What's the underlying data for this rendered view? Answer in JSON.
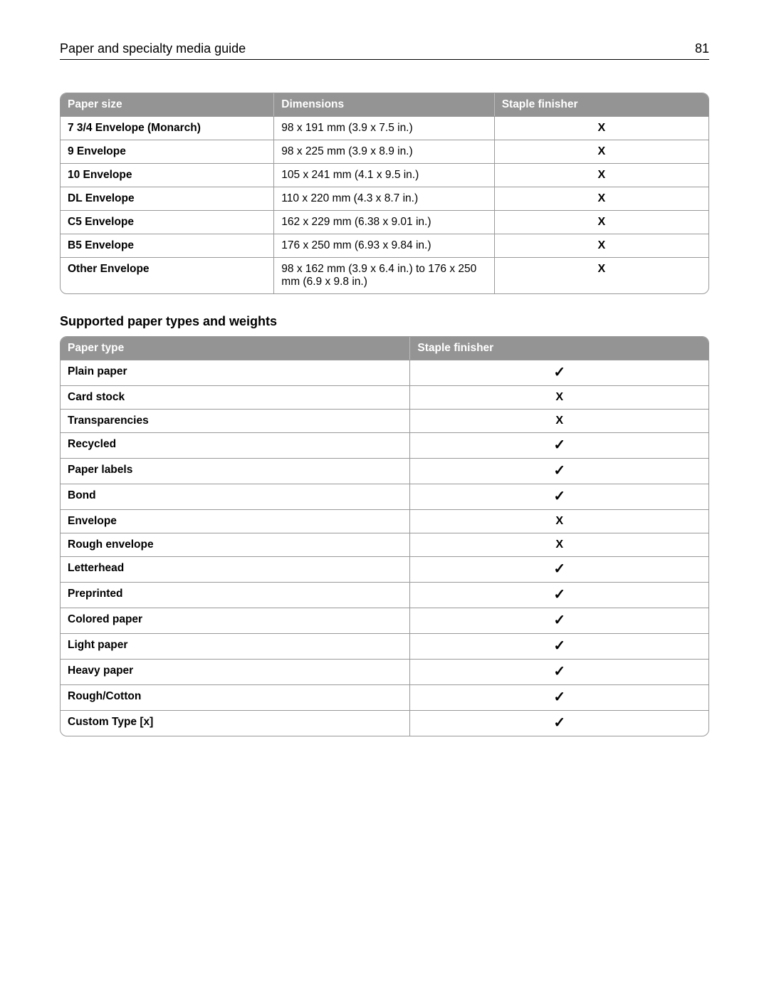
{
  "header": {
    "title": "Paper and specialty media guide",
    "page_number": "81"
  },
  "glyphs": {
    "check": "✓",
    "xmark": "X"
  },
  "colors": {
    "header_bg": "#949494",
    "header_text": "#ffffff",
    "border": "#999999"
  },
  "table1": {
    "columns": [
      "Paper size",
      "Dimensions",
      "Staple finisher"
    ],
    "rows": [
      {
        "size": "7 3/4 Envelope (Monarch)",
        "dim": "98 x 191 mm (3.9 x 7.5 in.)",
        "finisher": "X"
      },
      {
        "size": "9 Envelope",
        "dim": "98 x 225 mm (3.9 x 8.9 in.)",
        "finisher": "X"
      },
      {
        "size": "10 Envelope",
        "dim": "105 x 241 mm (4.1 x 9.5 in.)",
        "finisher": "X"
      },
      {
        "size": "DL Envelope",
        "dim": "110 x 220 mm (4.3 x 8.7 in.)",
        "finisher": "X"
      },
      {
        "size": "C5 Envelope",
        "dim": "162 x 229 mm (6.38 x 9.01 in.)",
        "finisher": "X"
      },
      {
        "size": "B5 Envelope",
        "dim": "176 x 250 mm (6.93 x 9.84 in.)",
        "finisher": "X"
      },
      {
        "size": "Other Envelope",
        "dim": "98 x 162 mm (3.9 x 6.4 in.) to 176 x 250 mm (6.9 x 9.8 in.)",
        "finisher": "X"
      }
    ]
  },
  "section_title": "Supported paper types and weights",
  "table2": {
    "columns": [
      "Paper type",
      "Staple finisher"
    ],
    "rows": [
      {
        "type": "Plain paper",
        "finisher": "check"
      },
      {
        "type": "Card stock",
        "finisher": "X"
      },
      {
        "type": "Transparencies",
        "finisher": "X"
      },
      {
        "type": "Recycled",
        "finisher": "check"
      },
      {
        "type": "Paper labels",
        "finisher": "check"
      },
      {
        "type": "Bond",
        "finisher": "check"
      },
      {
        "type": "Envelope",
        "finisher": "X"
      },
      {
        "type": "Rough envelope",
        "finisher": "X"
      },
      {
        "type": "Letterhead",
        "finisher": "check"
      },
      {
        "type": "Preprinted",
        "finisher": "check"
      },
      {
        "type": "Colored paper",
        "finisher": "check"
      },
      {
        "type": "Light paper",
        "finisher": "check"
      },
      {
        "type": "Heavy paper",
        "finisher": "check"
      },
      {
        "type": "Rough/Cotton",
        "finisher": "check"
      },
      {
        "type": "Custom Type [x]",
        "finisher": "check"
      }
    ]
  }
}
